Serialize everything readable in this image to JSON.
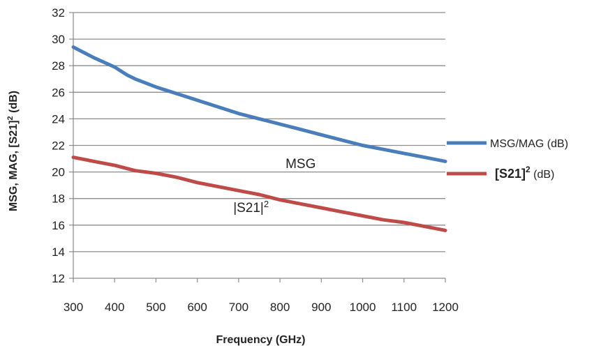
{
  "chart_data": {
    "type": "line",
    "xlabel": "Frequency (GHz)",
    "ylabel": {
      "prefix": "MSG, MAG, [S21]",
      "sup": "2",
      "suffix": " (dB)"
    },
    "xlim": [
      300,
      1200
    ],
    "ylim": [
      12,
      32
    ],
    "x_ticks": [
      "300",
      "400",
      "500",
      "600",
      "700",
      "800",
      "900",
      "1000",
      "1100",
      "1200"
    ],
    "y_ticks": [
      "12",
      "14",
      "16",
      "18",
      "20",
      "22",
      "24",
      "26",
      "28",
      "30",
      "32"
    ],
    "grid": true,
    "legend_position": "right",
    "series": [
      {
        "name": "MSG/MAG (dB)",
        "legend": {
          "main": "MSG/MAG",
          "sup": "",
          "unit": " (dB)",
          "bold": false
        },
        "color": "#4a7ebb",
        "x": [
          300,
          350,
          400,
          430,
          450,
          500,
          550,
          600,
          650,
          700,
          750,
          800,
          850,
          900,
          950,
          1000,
          1050,
          1100,
          1150,
          1200
        ],
        "y": [
          29.4,
          28.6,
          27.9,
          27.3,
          27.0,
          26.4,
          25.9,
          25.4,
          24.9,
          24.4,
          24.0,
          23.6,
          23.2,
          22.8,
          22.4,
          22.0,
          21.7,
          21.4,
          21.1,
          20.8
        ]
      },
      {
        "name": "[S21]2 (dB)",
        "legend": {
          "main": "[S21]",
          "sup": "2",
          "unit": "  (dB)",
          "bold": true
        },
        "color": "#be4b48",
        "x": [
          300,
          350,
          400,
          450,
          500,
          550,
          600,
          650,
          700,
          750,
          800,
          850,
          900,
          950,
          1000,
          1050,
          1100,
          1150,
          1200
        ],
        "y": [
          21.1,
          20.8,
          20.5,
          20.1,
          19.9,
          19.6,
          19.2,
          18.9,
          18.6,
          18.3,
          17.9,
          17.6,
          17.3,
          17.0,
          16.7,
          16.4,
          16.2,
          15.9,
          15.6
        ]
      }
    ],
    "annotations": [
      {
        "text": "MSG",
        "x": 850,
        "y": 20.3
      },
      {
        "text": "|S21|2",
        "x": 730,
        "y": 17.0
      }
    ]
  }
}
